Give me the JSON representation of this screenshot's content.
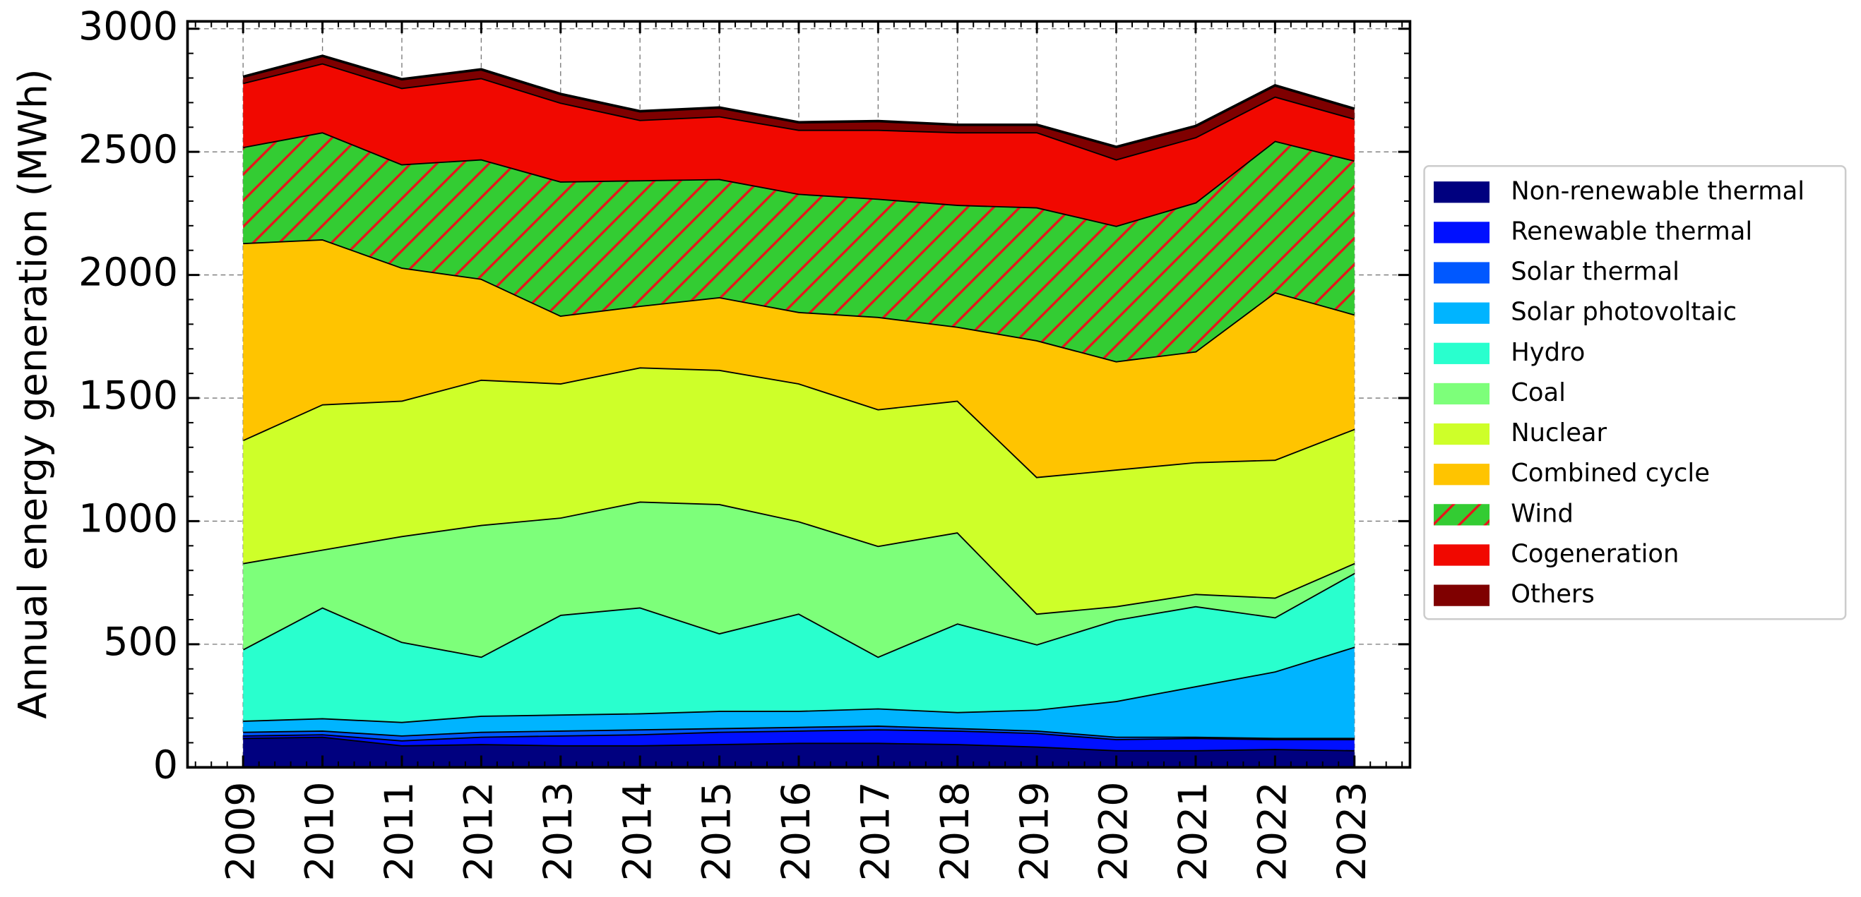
{
  "chart_data": {
    "type": "stacked_area",
    "y_label": "Annual energy generation (MWh)",
    "x": [
      2009,
      2010,
      2011,
      2012,
      2013,
      2014,
      2015,
      2016,
      2017,
      2018,
      2019,
      2020,
      2021,
      2022,
      2023
    ],
    "xlim": [
      2008.3,
      2023.7
    ],
    "xticks": [
      2009,
      2010,
      2011,
      2012,
      2013,
      2014,
      2015,
      2016,
      2017,
      2018,
      2019,
      2020,
      2021,
      2022,
      2023
    ],
    "ylim": [
      0,
      3030
    ],
    "yticks": [
      0,
      500,
      1000,
      1500,
      2000,
      2500,
      3000
    ],
    "grid": true,
    "legend": "outside right",
    "series": [
      {
        "name": "Non-renewable thermal",
        "color": "#00007f",
        "values": [
          120,
          125,
          90,
          95,
          90,
          90,
          95,
          100,
          100,
          95,
          85,
          70,
          70,
          75,
          70
        ]
      },
      {
        "name": "Renewable thermal",
        "color": "#0010ff",
        "values": [
          10,
          10,
          20,
          30,
          40,
          45,
          50,
          50,
          55,
          55,
          55,
          45,
          50,
          40,
          45
        ]
      },
      {
        "name": "Solar thermal",
        "color": "#0058ff",
        "values": [
          15,
          15,
          20,
          20,
          20,
          20,
          15,
          15,
          15,
          10,
          10,
          10,
          5,
          5,
          5
        ]
      },
      {
        "name": "Solar photovoltaic",
        "color": "#00b4ff",
        "values": [
          45,
          50,
          55,
          65,
          65,
          65,
          70,
          65,
          70,
          65,
          85,
          145,
          205,
          270,
          370
        ]
      },
      {
        "name": "Hydro",
        "color": "#29ffce",
        "values": [
          290,
          450,
          325,
          240,
          405,
          430,
          315,
          395,
          210,
          360,
          265,
          330,
          325,
          220,
          300
        ]
      },
      {
        "name": "Coal",
        "color": "#7dff7a",
        "values": [
          350,
          235,
          430,
          535,
          395,
          430,
          525,
          375,
          450,
          370,
          125,
          55,
          50,
          80,
          40
        ]
      },
      {
        "name": "Nuclear",
        "color": "#ceff29",
        "values": [
          500,
          590,
          550,
          590,
          545,
          545,
          545,
          560,
          555,
          535,
          555,
          555,
          535,
          560,
          545
        ]
      },
      {
        "name": "Combined cycle",
        "color": "#ffc400",
        "values": [
          800,
          670,
          540,
          410,
          275,
          250,
          295,
          290,
          375,
          300,
          555,
          440,
          450,
          680,
          465
        ]
      },
      {
        "name": "Wind",
        "color": "#33cc33",
        "hatch": "/",
        "hatch_color": "#e8141b",
        "values": [
          390,
          435,
          420,
          485,
          545,
          510,
          480,
          480,
          480,
          495,
          540,
          550,
          605,
          615,
          625
        ]
      },
      {
        "name": "Cogeneration",
        "color": "#f10800",
        "values": [
          260,
          280,
          310,
          330,
          320,
          245,
          255,
          260,
          280,
          295,
          305,
          270,
          265,
          180,
          170
        ]
      },
      {
        "name": "Others",
        "color": "#7f0000",
        "values": [
          25,
          30,
          35,
          35,
          35,
          35,
          35,
          30,
          35,
          30,
          30,
          50,
          45,
          45,
          40
        ]
      }
    ]
  }
}
